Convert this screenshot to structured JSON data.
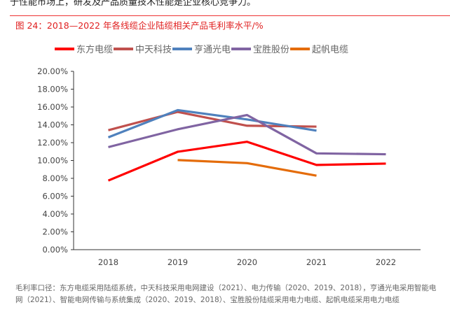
{
  "top_text": "于性能市场上，研发及产品质量技术性能是企业核心竞争力。",
  "figure_title": "图 24：2018—2022 年各线缆企业陆缆相关产品毛利率水平/%",
  "note": "毛利率口径：东方电缆采用陆缆系统，中天科技采用电网建设（2021）、电力传输（2020、2019、2018），亨通光电采用智能电网（2021）、智能电网传输与系统集成（2020、2019、2018）、宝胜股份陆缆采用电力电缆、起帆电缆采用电力电缆",
  "chart_data": {
    "type": "line",
    "title": "图 24：2018—2022 年各线缆企业陆缆相关产品毛利率水平/%",
    "categories": [
      "2018",
      "2019",
      "2020",
      "2021",
      "2022"
    ],
    "ylim": [
      0,
      20
    ],
    "yticks": [
      "0.00%",
      "2.00%",
      "4.00%",
      "6.00%",
      "8.00%",
      "10.00%",
      "12.00%",
      "14.00%",
      "16.00%",
      "18.00%",
      "20.00%"
    ],
    "grid": false,
    "legend": "top",
    "series": [
      {
        "name": "东方电缆",
        "color": "#ff0000",
        "values": [
          7.75,
          10.98,
          12.1,
          9.5,
          9.65
        ]
      },
      {
        "name": "中天科技",
        "color": "#c0504d",
        "values": [
          13.4,
          15.45,
          13.9,
          13.8,
          null
        ]
      },
      {
        "name": "亨通光电",
        "color": "#4f81bd",
        "values": [
          12.6,
          15.65,
          14.6,
          13.35,
          null
        ]
      },
      {
        "name": "宝胜股份",
        "color": "#8064a2",
        "values": [
          11.5,
          13.5,
          15.1,
          10.8,
          10.7
        ]
      },
      {
        "name": "起帆电缆",
        "color": "#e46c0a",
        "values": [
          null,
          10.05,
          9.7,
          8.3,
          null
        ]
      }
    ]
  }
}
